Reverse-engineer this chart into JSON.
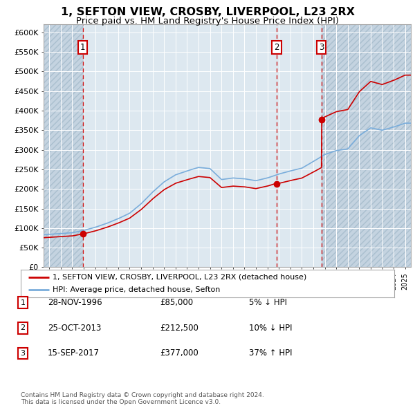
{
  "title": "1, SEFTON VIEW, CROSBY, LIVERPOOL, L23 2RX",
  "subtitle": "Price paid vs. HM Land Registry's House Price Index (HPI)",
  "legend_line1": "1, SEFTON VIEW, CROSBY, LIVERPOOL, L23 2RX (detached house)",
  "legend_line2": "HPI: Average price, detached house, Sefton",
  "property_color": "#cc0000",
  "hpi_color": "#7aaddb",
  "background_color": "#dde8f0",
  "dashed_line_color": "#cc0000",
  "transactions": [
    {
      "label": "1",
      "date": "28-NOV-1996",
      "price": 85000,
      "pct": "5%",
      "dir": "↓"
    },
    {
      "label": "2",
      "date": "25-OCT-2013",
      "price": 212500,
      "pct": "10%",
      "dir": "↓"
    },
    {
      "label": "3",
      "date": "15-SEP-2017",
      "price": 377000,
      "pct": "37%",
      "dir": "↑"
    }
  ],
  "transaction_years": [
    1996.92,
    2013.81,
    2017.71
  ],
  "transaction_prices": [
    85000,
    212500,
    377000
  ],
  "ylim": [
    0,
    620000
  ],
  "yticks": [
    0,
    50000,
    100000,
    150000,
    200000,
    250000,
    300000,
    350000,
    400000,
    450000,
    500000,
    550000,
    600000
  ],
  "xlim_start": 1993.5,
  "xlim_end": 2025.5,
  "footer": "Contains HM Land Registry data © Crown copyright and database right 2024.\nThis data is licensed under the Open Government Licence v3.0.",
  "hpi_years": [
    1993,
    1994,
    1995,
    1996,
    1997,
    1998,
    1999,
    2000,
    2001,
    2002,
    2003,
    2004,
    2005,
    2006,
    2007,
    2008,
    2009,
    2010,
    2011,
    2012,
    2013,
    2014,
    2015,
    2016,
    2017,
    2018,
    2019,
    2020,
    2021,
    2022,
    2023,
    2024,
    2025
  ],
  "hpi_values": [
    82000,
    84000,
    86000,
    88000,
    94000,
    102000,
    112000,
    124000,
    138000,
    162000,
    192000,
    218000,
    236000,
    246000,
    255000,
    252000,
    224000,
    228000,
    226000,
    221000,
    228000,
    238000,
    246000,
    253000,
    270000,
    288000,
    298000,
    302000,
    336000,
    356000,
    350000,
    358000,
    368000
  ]
}
